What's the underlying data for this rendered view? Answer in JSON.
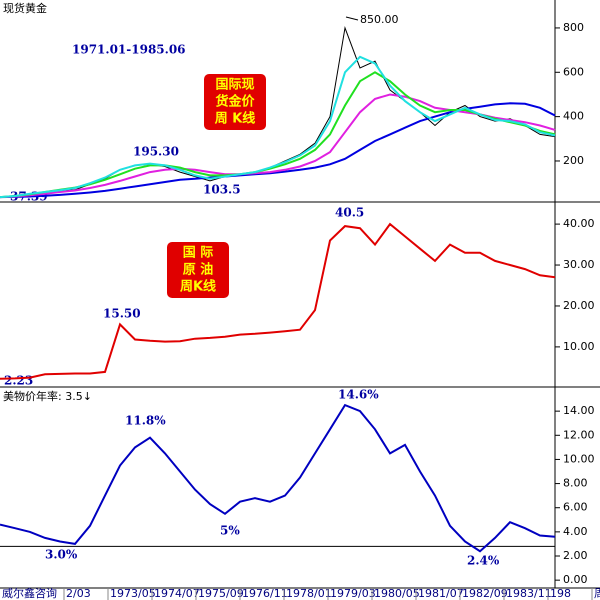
{
  "title": "现货黄金",
  "source": "威尔鑫咨询",
  "x_labels": [
    "2/03",
    "1973/05",
    "1974/07",
    "1975/09",
    "1976/11",
    "1978/01",
    "1979/03",
    "1980/05",
    "1981/07",
    "1982/09",
    "1983/11",
    "198",
    "周线"
  ],
  "chart_data": [
    {
      "type": "line",
      "title": "1971.01-1985.06",
      "box_label": [
        "国际现",
        "货金价",
        "周 K线"
      ],
      "annotations": [
        "850.00",
        "195.30",
        "103.5",
        "37.39"
      ],
      "ylim": [
        15,
        926
      ],
      "yticks": [
        200,
        400,
        600,
        800
      ],
      "series": [
        {
          "name": "price",
          "color": "#000000",
          "values": [
            37,
            40,
            45,
            55,
            65,
            70,
            95,
            120,
            160,
            180,
            185,
            175,
            150,
            130,
            110,
            130,
            140,
            150,
            170,
            200,
            230,
            280,
            400,
            800,
            620,
            650,
            520,
            470,
            420,
            360,
            420,
            450,
            400,
            380,
            390,
            360,
            320,
            310
          ]
        },
        {
          "name": "ma-long",
          "color": "#0000e0",
          "values": [
            37,
            38,
            40,
            43,
            47,
            52,
            58,
            65,
            75,
            85,
            95,
            105,
            115,
            120,
            125,
            130,
            135,
            140,
            145,
            152,
            160,
            170,
            185,
            210,
            250,
            290,
            320,
            350,
            380,
            400,
            420,
            435,
            445,
            455,
            460,
            458,
            440,
            405
          ]
        },
        {
          "name": "ma-mid2",
          "color": "#e020e0",
          "values": [
            37,
            40,
            45,
            52,
            60,
            67,
            78,
            92,
            110,
            130,
            150,
            160,
            165,
            160,
            150,
            140,
            140,
            145,
            150,
            160,
            175,
            200,
            240,
            330,
            420,
            480,
            500,
            490,
            470,
            440,
            430,
            420,
            410,
            395,
            385,
            375,
            360,
            340
          ]
        },
        {
          "name": "ma-mid",
          "color": "#20e020",
          "values": [
            37,
            42,
            50,
            60,
            70,
            80,
            95,
            115,
            140,
            165,
            180,
            180,
            170,
            150,
            135,
            135,
            140,
            150,
            165,
            185,
            210,
            250,
            320,
            450,
            560,
            600,
            560,
            500,
            450,
            420,
            430,
            430,
            410,
            390,
            375,
            360,
            335,
            320
          ]
        },
        {
          "name": "ma-short",
          "color": "#20e0e0",
          "values": [
            37,
            42,
            52,
            60,
            68,
            78,
            100,
            125,
            160,
            180,
            188,
            180,
            160,
            135,
            120,
            130,
            140,
            150,
            170,
            195,
            225,
            270,
            380,
            600,
            670,
            640,
            540,
            470,
            420,
            380,
            410,
            440,
            410,
            385,
            380,
            365,
            330,
            315
          ]
        }
      ]
    },
    {
      "type": "line",
      "box_label": [
        "国 际",
        "原 油",
        "周K线"
      ],
      "annotations": [
        "15.50",
        "40.5",
        "2.23"
      ],
      "ylim": [
        0.2,
        45.4
      ],
      "yticks": [
        {
          "value": 10,
          "label": "10.00"
        },
        {
          "value": 20,
          "label": "20.00"
        },
        {
          "value": 30,
          "label": "30.00"
        },
        {
          "value": 40,
          "label": "40.00"
        }
      ],
      "series": [
        {
          "name": "oil",
          "color": "#e00000",
          "values": [
            2.23,
            2.3,
            2.5,
            3.3,
            3.4,
            3.5,
            3.5,
            3.9,
            15.5,
            11.8,
            11.5,
            11.3,
            11.4,
            12,
            12.2,
            12.5,
            13,
            13.2,
            13.5,
            13.8,
            14.2,
            19,
            36,
            39.5,
            39,
            35,
            40,
            37,
            34,
            31,
            35,
            33,
            33,
            31,
            30,
            29,
            27.5,
            27
          ]
        }
      ]
    },
    {
      "type": "line",
      "title": "美物价年率: 3.5↓",
      "annotations": [
        "11.8%",
        "14.6%",
        "5%",
        "3.0%",
        "2.4%"
      ],
      "hline": 2.8,
      "ylim": [
        -0.65,
        16
      ],
      "yticks": [
        {
          "value": 0,
          "label": "0.00"
        },
        {
          "value": 2,
          "label": "2.00"
        },
        {
          "value": 4,
          "label": "4.00"
        },
        {
          "value": 6,
          "label": "6.00"
        },
        {
          "value": 8,
          "label": "8.00"
        },
        {
          "value": 10,
          "label": "10.00"
        },
        {
          "value": 12,
          "label": "12.00"
        },
        {
          "value": 14,
          "label": "14.00"
        }
      ],
      "series": [
        {
          "name": "cpi",
          "color": "#0000c0",
          "values": [
            4.6,
            4.3,
            4,
            3.5,
            3.2,
            3,
            4.5,
            7,
            9.5,
            11,
            11.8,
            10.5,
            9,
            7.5,
            6.3,
            5.5,
            6.5,
            6.8,
            6.5,
            7,
            8.5,
            10.5,
            12.5,
            14.5,
            14,
            12.5,
            10.5,
            11.2,
            9,
            7,
            4.5,
            3.2,
            2.4,
            3.5,
            4.8,
            4.3,
            3.7,
            3.6
          ]
        }
      ]
    }
  ]
}
